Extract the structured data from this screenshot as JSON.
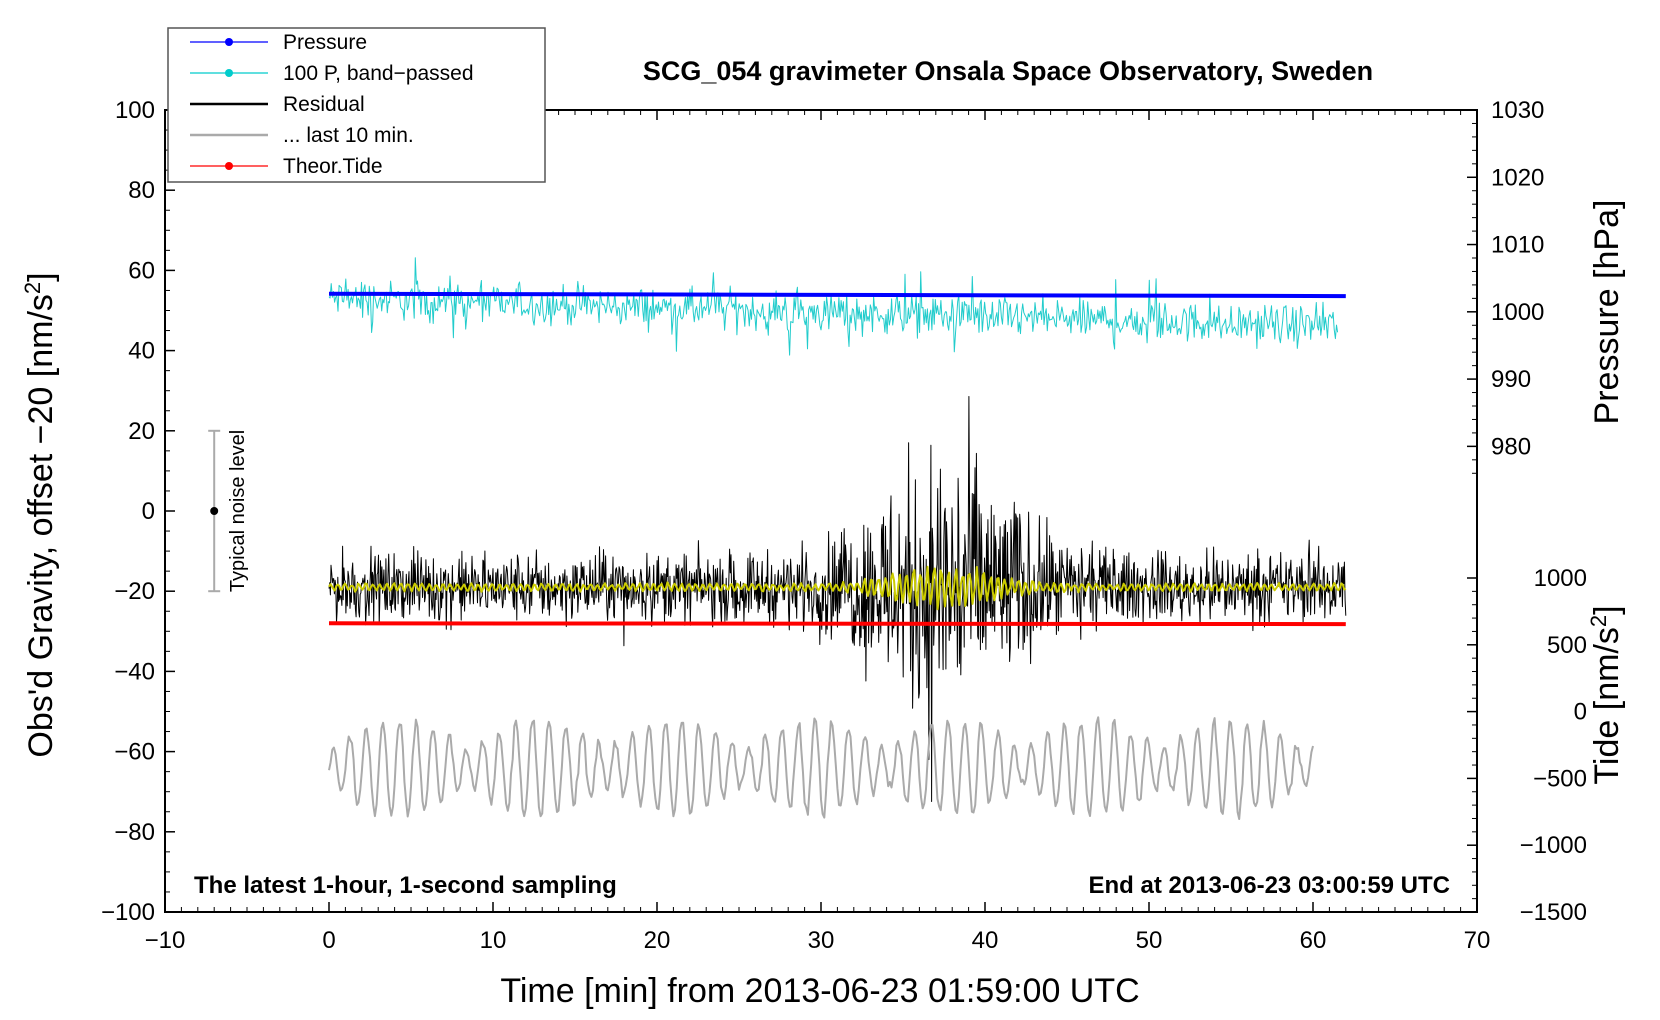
{
  "chart_data": {
    "type": "line",
    "title": "SCG_054 gravimeter Onsala Space Observatory, Sweden",
    "xlabel": "Time [min] from 2013-06-23 01:59:00 UTC",
    "ylabel_left": "Obs'd Gravity, offset −20 [nm/s",
    "ylabel_left_sup": "2",
    "ylabel_left_end": "]",
    "ylabel_right_pressure": "Pressure [hPa]",
    "ylabel_right_tide": "Tide [nm/s",
    "ylabel_right_tide_sup": "2",
    "ylabel_right_tide_end": "]",
    "xlim": [
      -10,
      70
    ],
    "ylim": [
      -100,
      100
    ],
    "pressure_ylim": [
      975,
      1030
    ],
    "tide_ylim": [
      -1500,
      1000
    ],
    "x_ticks": [
      "−10",
      "0",
      "10",
      "20",
      "30",
      "40",
      "50",
      "60",
      "70"
    ],
    "x_tick_values": [
      -10,
      0,
      10,
      20,
      30,
      40,
      50,
      60,
      70
    ],
    "y_ticks": [
      "100",
      "80",
      "60",
      "40",
      "20",
      "0",
      "−20",
      "−40",
      "−60",
      "−80",
      "−100"
    ],
    "y_tick_values": [
      100,
      80,
      60,
      40,
      20,
      0,
      -20,
      -40,
      -60,
      -80,
      -100
    ],
    "pressure_ticks": [
      "1030",
      "1020",
      "1010",
      "1000",
      "990",
      "980"
    ],
    "pressure_tick_values": [
      1030,
      1020,
      1010,
      1000,
      990,
      980
    ],
    "tide_ticks": [
      "1000",
      "500",
      "0",
      "−500",
      "−1000",
      "−1500"
    ],
    "tide_tick_values": [
      1000,
      500,
      0,
      -500,
      -1000,
      -1500
    ],
    "footer_left": "The latest 1-hour, 1-second sampling",
    "footer_right": "End at 2013-06-23 03:00:59 UTC",
    "noise_bar": {
      "label": "Typical noise level",
      "x": -7,
      "center": 0,
      "low": -20,
      "high": 20
    },
    "legend": [
      {
        "label": "Pressure",
        "color": "#0000ff",
        "marker": true
      },
      {
        "label": "100 P, band−passed",
        "color": "#00cccc",
        "marker": true
      },
      {
        "label": "Residual",
        "color": "#000000",
        "marker": false
      },
      {
        "label": "... last 10 min.",
        "color": "#aaaaaa",
        "marker": false
      },
      {
        "label": "Theor.Tide",
        "color": "#ff0000",
        "marker": true
      }
    ],
    "series": [
      {
        "name": "Pressure",
        "color": "#0000ff",
        "x_range": [
          0,
          62
        ],
        "start": 54.2,
        "end": 53.6,
        "width": 4
      },
      {
        "name": "100 P, band-passed",
        "color": "#22cccc",
        "x_range": [
          0,
          61.5
        ],
        "baseline_start": 53,
        "baseline_end": 46,
        "amplitude": 4,
        "width": 1
      },
      {
        "name": "Residual",
        "color": "#000000",
        "x_range": [
          0,
          62
        ],
        "baseline": -19,
        "amplitude_quiet": 7,
        "amplitude_quake": 30,
        "quake_center": 37.5,
        "width": 1
      },
      {
        "name": "Residual smoothed",
        "color": "#cccc00",
        "x_range": [
          0,
          62
        ],
        "baseline": -19,
        "amplitude_quiet": 1,
        "amplitude_quake": 6,
        "quake_center": 37.5,
        "width": 2
      },
      {
        "name": "... last 10 min.",
        "color": "#aaaaaa",
        "x_range": [
          0,
          60
        ],
        "baseline": -64,
        "amplitude": 12,
        "width": 2
      },
      {
        "name": "Theor.Tide",
        "color": "#ff0000",
        "x_range": [
          0,
          62
        ],
        "start": -28,
        "end": -28.2,
        "width": 4
      }
    ]
  }
}
